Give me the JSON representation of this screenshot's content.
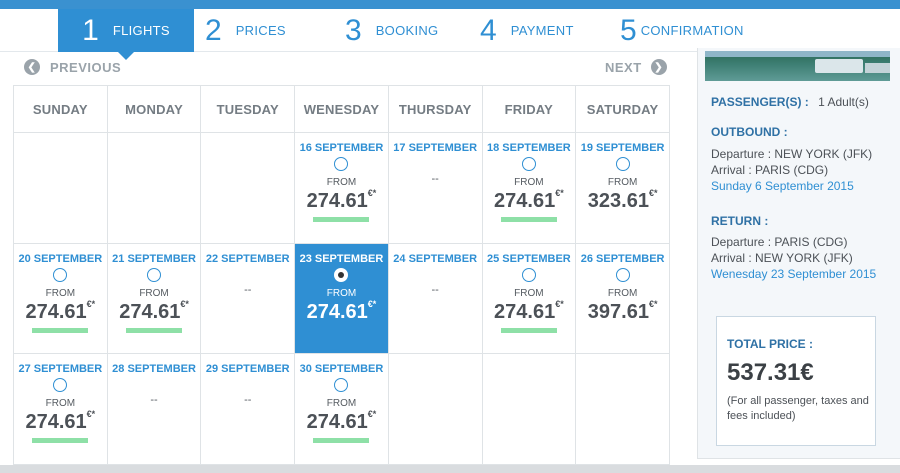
{
  "steps": [
    {
      "num": "1",
      "label": "FLIGHTS"
    },
    {
      "num": "2",
      "label": "PRICES"
    },
    {
      "num": "3",
      "label": "BOOKING"
    },
    {
      "num": "4",
      "label": "PAYMENT"
    },
    {
      "num": "5",
      "label": "CONFIRMATION"
    }
  ],
  "active_step": 1,
  "nav": {
    "previous": "PREVIOUS",
    "next": "NEXT",
    "prev_icon": "chevron-left-icon",
    "next_icon": "chevron-right-icon"
  },
  "days": [
    "SUNDAY",
    "MONDAY",
    "TUESDAY",
    "WENESDAY",
    "THURSDAY",
    "FRIDAY",
    "SATURDAY"
  ],
  "from_label": "FROM",
  "currency": "€*",
  "weeks": [
    [
      null,
      null,
      null,
      {
        "date": "16 SEPTEMBER",
        "price": "274.61",
        "bar": true
      },
      {
        "date": "17 SEPTEMBER",
        "price": "--"
      },
      {
        "date": "18 SEPTEMBER",
        "price": "274.61",
        "bar": true
      },
      {
        "date": "19 SEPTEMBER",
        "price": "323.61"
      }
    ],
    [
      {
        "date": "20 SEPTEMBER",
        "price": "274.61",
        "bar": true
      },
      {
        "date": "21 SEPTEMBER",
        "price": "274.61",
        "bar": true
      },
      {
        "date": "22 SEPTEMBER",
        "price": "--"
      },
      {
        "date": "23 SEPTEMBER",
        "price": "274.61",
        "selected": true
      },
      {
        "date": "24 SEPTEMBER",
        "price": "--"
      },
      {
        "date": "25 SEPTEMBER",
        "price": "274.61",
        "bar": true
      },
      {
        "date": "26 SEPTEMBER",
        "price": "397.61"
      }
    ],
    [
      {
        "date": "27 SEPTEMBER",
        "price": "274.61",
        "bar": true
      },
      {
        "date": "28 SEPTEMBER",
        "price": "--"
      },
      {
        "date": "29 SEPTEMBER",
        "price": "--"
      },
      {
        "date": "30 SEPTEMBER",
        "price": "274.61",
        "bar": true
      },
      null,
      null,
      null
    ]
  ],
  "summary": {
    "passengers_label": "PASSENGER(S) :",
    "passengers_value": "1 Adult(s)",
    "outbound_label": "OUTBOUND :",
    "outbound_departure": "Departure : NEW YORK (JFK)",
    "outbound_arrival": "Arrival : PARIS (CDG)",
    "outbound_date": "Sunday 6 September 2015",
    "return_label": "RETURN :",
    "return_departure": "Departure : PARIS (CDG)",
    "return_arrival": "Arrival : NEW YORK (JFK)",
    "return_date": "Wenesday 23 September 2015",
    "total_label": "TOTAL PRICE :",
    "total_value": "537.31€",
    "total_note": "(For all passenger, taxes and fees included)"
  },
  "colors": {
    "accent": "#2f8fd3",
    "price_bar": "#8ee0a7",
    "text": "#4c5157"
  }
}
